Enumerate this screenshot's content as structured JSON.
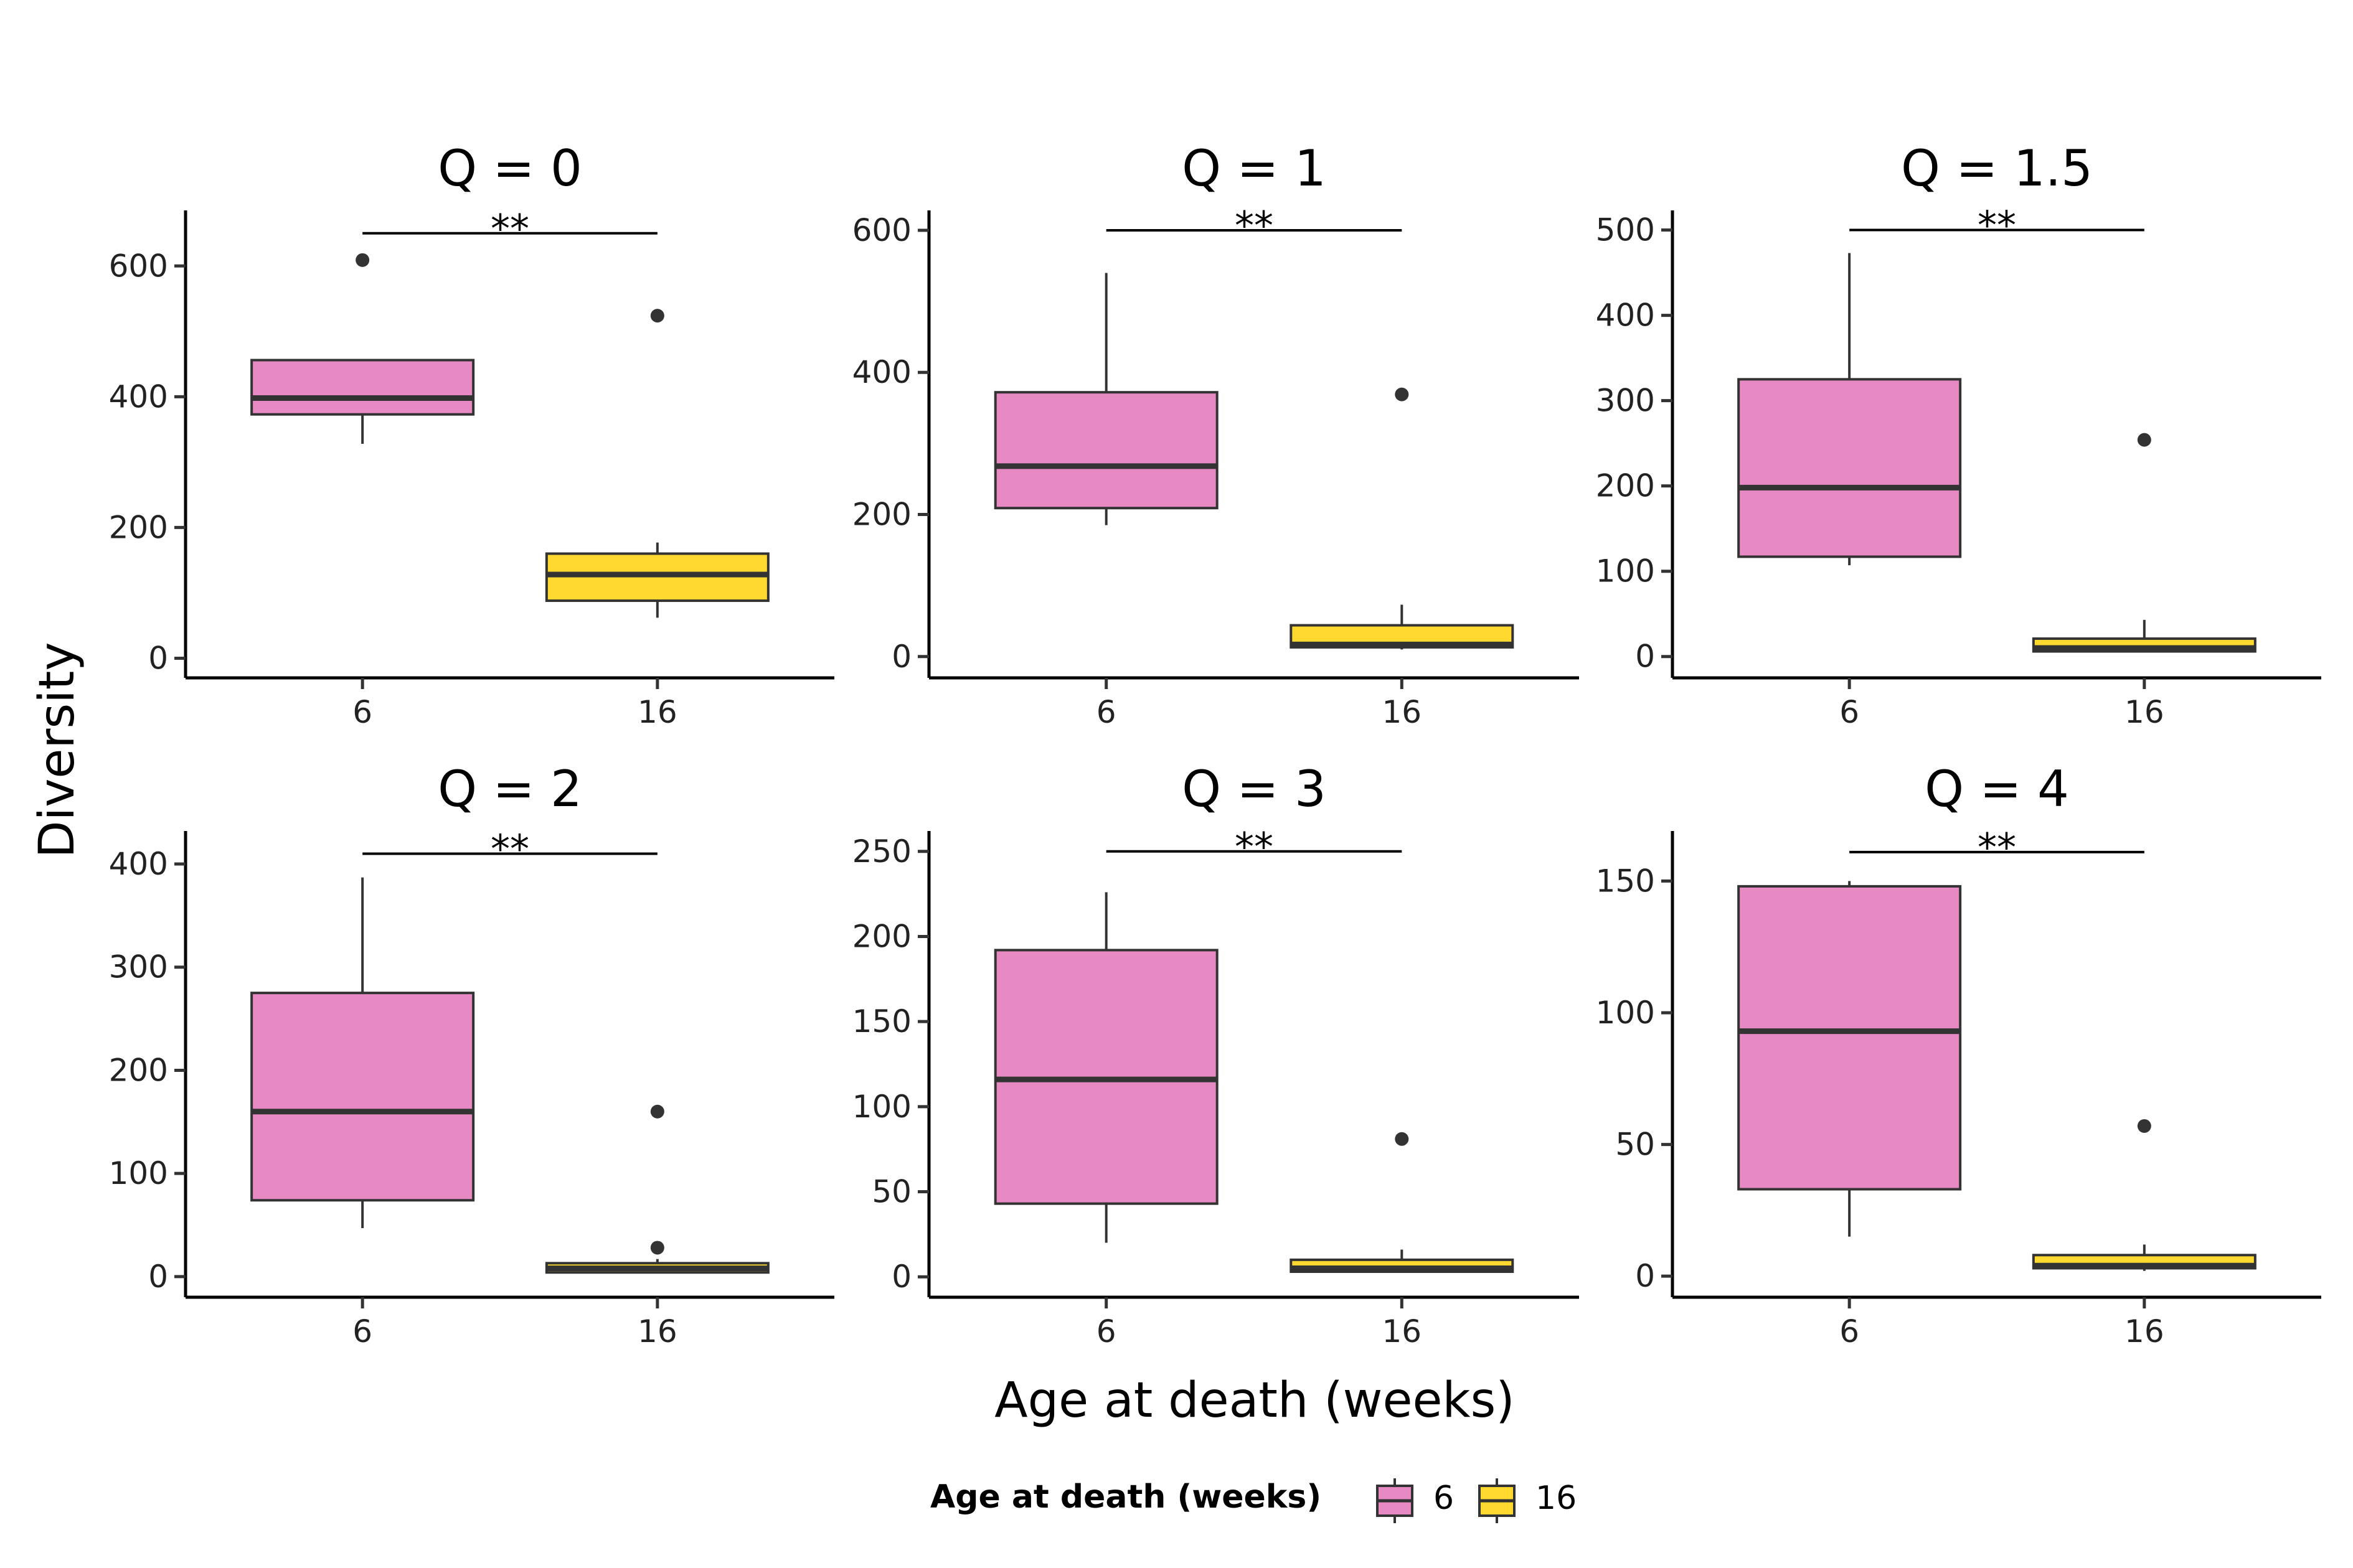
{
  "figure": {
    "ylabel": "Diversity",
    "xlabel": "Age at death (weeks)",
    "legend": {
      "title": "Age at death (weeks)",
      "entries": [
        {
          "label": "6",
          "color": "#E78AC3"
        },
        {
          "label": "16",
          "color": "#FFD92F"
        }
      ]
    }
  },
  "chart_data": [
    {
      "type": "box",
      "title": "Q = 0",
      "categories": [
        "6",
        "16"
      ],
      "ylim": [
        -30,
        685
      ],
      "yticks": [
        0,
        200,
        400,
        600
      ],
      "significance": "**",
      "sig_y": 650,
      "boxes": [
        {
          "group": "6",
          "color": "#E78AC3",
          "whisker_low": 328,
          "q1": 373,
          "median": 398,
          "q3": 456,
          "whisker_high": 456,
          "outliers": [
            609
          ]
        },
        {
          "group": "16",
          "color": "#FFD92F",
          "whisker_low": 62,
          "q1": 88,
          "median": 128,
          "q3": 160,
          "whisker_high": 177,
          "outliers": [
            524
          ]
        }
      ]
    },
    {
      "type": "box",
      "title": "Q = 1",
      "categories": [
        "6",
        "16"
      ],
      "ylim": [
        -30,
        628
      ],
      "yticks": [
        0,
        200,
        400,
        600
      ],
      "significance": "**",
      "sig_y": 600,
      "boxes": [
        {
          "group": "6",
          "color": "#E78AC3",
          "whisker_low": 185,
          "q1": 209,
          "median": 268,
          "q3": 372,
          "whisker_high": 540,
          "outliers": []
        },
        {
          "group": "16",
          "color": "#FFD92F",
          "whisker_low": 10,
          "q1": 13,
          "median": 17,
          "q3": 44,
          "whisker_high": 73,
          "outliers": [
            369
          ]
        }
      ]
    },
    {
      "type": "box",
      "title": "Q = 1.5",
      "categories": [
        "6",
        "16"
      ],
      "ylim": [
        -25,
        523
      ],
      "yticks": [
        0,
        100,
        200,
        300,
        400,
        500
      ],
      "significance": "**",
      "sig_y": 500,
      "boxes": [
        {
          "group": "6",
          "color": "#E78AC3",
          "whisker_low": 107,
          "q1": 117,
          "median": 198,
          "q3": 325,
          "whisker_high": 473,
          "outliers": []
        },
        {
          "group": "16",
          "color": "#FFD92F",
          "whisker_low": 5,
          "q1": 6,
          "median": 10,
          "q3": 21,
          "whisker_high": 43,
          "outliers": [
            254
          ]
        }
      ]
    },
    {
      "type": "box",
      "title": "Q = 2",
      "categories": [
        "6",
        "16"
      ],
      "ylim": [
        -20,
        432
      ],
      "yticks": [
        0,
        100,
        200,
        300,
        400
      ],
      "significance": "**",
      "sig_y": 410,
      "boxes": [
        {
          "group": "6",
          "color": "#E78AC3",
          "whisker_low": 47,
          "q1": 74,
          "median": 160,
          "q3": 275,
          "whisker_high": 387,
          "outliers": []
        },
        {
          "group": "16",
          "color": "#FFD92F",
          "whisker_low": 4,
          "q1": 4,
          "median": 8,
          "q3": 13,
          "whisker_high": 17,
          "outliers": [
            160,
            28
          ]
        }
      ]
    },
    {
      "type": "box",
      "title": "Q = 3",
      "categories": [
        "6",
        "16"
      ],
      "ylim": [
        -12,
        262
      ],
      "yticks": [
        0,
        50,
        100,
        150,
        200,
        250
      ],
      "significance": "**",
      "sig_y": 250,
      "boxes": [
        {
          "group": "6",
          "color": "#E78AC3",
          "whisker_low": 20,
          "q1": 43,
          "median": 116,
          "q3": 192,
          "whisker_high": 226,
          "outliers": []
        },
        {
          "group": "16",
          "color": "#FFD92F",
          "whisker_low": 3,
          "q1": 3,
          "median": 5,
          "q3": 10,
          "whisker_high": 16,
          "outliers": [
            81
          ]
        }
      ]
    },
    {
      "type": "box",
      "title": "Q = 4",
      "categories": [
        "6",
        "16"
      ],
      "ylim": [
        -8,
        169
      ],
      "yticks": [
        0,
        50,
        100,
        150
      ],
      "significance": "**",
      "sig_y": 161,
      "boxes": [
        {
          "group": "6",
          "color": "#E78AC3",
          "whisker_low": 15,
          "q1": 33,
          "median": 93,
          "q3": 148,
          "whisker_high": 150,
          "outliers": []
        },
        {
          "group": "16",
          "color": "#FFD92F",
          "whisker_low": 2,
          "q1": 3,
          "median": 4,
          "q3": 8,
          "whisker_high": 12,
          "outliers": [
            57
          ]
        }
      ]
    }
  ]
}
